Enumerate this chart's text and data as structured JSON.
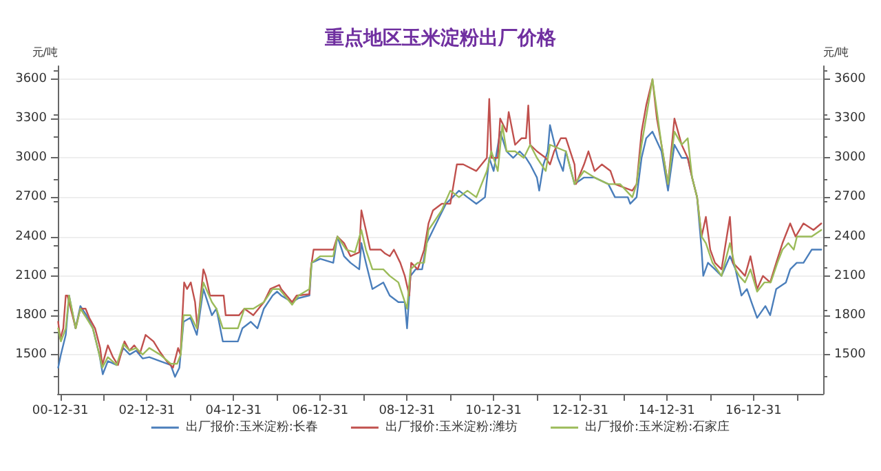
{
  "chart_data": {
    "type": "line",
    "title": "重点地区玉米淀粉出厂价格",
    "ylabel": "元/吨",
    "y2label": "元/吨",
    "xlim": [
      "2000-12-10",
      "2018-08-10"
    ],
    "xticks": [
      {
        "value": "2000-12-31",
        "label": "00-12-31"
      },
      {
        "value": "2001-12-31",
        "label": null
      },
      {
        "value": "2002-12-31",
        "label": "02-12-31"
      },
      {
        "value": "2003-12-31",
        "label": null
      },
      {
        "value": "2004-12-31",
        "label": "04-12-31"
      },
      {
        "value": "2005-12-31",
        "label": null
      },
      {
        "value": "2006-12-31",
        "label": "06-12-31"
      },
      {
        "value": "2007-12-31",
        "label": null
      },
      {
        "value": "2008-12-31",
        "label": "08-12-31"
      },
      {
        "value": "2009-12-31",
        "label": null
      },
      {
        "value": "2010-12-31",
        "label": "10-12-31"
      },
      {
        "value": "2011-12-31",
        "label": null
      },
      {
        "value": "2012-12-31",
        "label": "12-12-31"
      },
      {
        "value": "2013-12-31",
        "label": null
      },
      {
        "value": "2014-12-31",
        "label": "14-12-31"
      },
      {
        "value": "2015-12-31",
        "label": null
      },
      {
        "value": "2016-12-31",
        "label": "16-12-31"
      },
      {
        "value": "2017-12-31",
        "label": null
      }
    ],
    "ylim": [
      1200,
      3700
    ],
    "yticks": [
      1500,
      1800,
      2100,
      2400,
      2700,
      3000,
      3300,
      3600
    ],
    "y2lim": [
      1200,
      3700
    ],
    "y2ticks": [
      1500,
      1800,
      2100,
      2400,
      2700,
      3000,
      3300,
      3600
    ],
    "grid": "y",
    "legend": "bottom",
    "marker": "none",
    "line_style": "solid",
    "series": [
      {
        "name": "出厂报价:玉米淀粉:长春",
        "color": "#4a7ebb",
        "x": [
          "2000-12-13",
          "2001-01-05",
          "2001-02-15",
          "2001-03-15",
          "2001-05-08",
          "2001-06-18",
          "2001-08-08",
          "2001-10-01",
          "2001-11-25",
          "2001-12-24",
          "2002-02-05",
          "2002-04-20",
          "2002-06-15",
          "2002-08-08",
          "2002-10-01",
          "2002-11-25",
          "2003-01-20",
          "2003-04-20",
          "2003-07-20",
          "2003-08-25",
          "2003-10-01",
          "2003-11-05",
          "2004-01-01",
          "2004-02-25",
          "2004-04-20",
          "2004-07-01",
          "2004-08-08",
          "2004-10-01",
          "2005-02-05",
          "2005-03-15",
          "2005-05-25",
          "2005-07-20",
          "2005-09-12",
          "2005-11-25",
          "2006-01-01",
          "2006-02-05",
          "2006-05-08",
          "2006-07-01",
          "2006-10-01",
          "2006-10-20",
          "2007-01-01",
          "2007-04-20",
          "2007-05-25",
          "2007-07-20",
          "2007-09-12",
          "2007-11-25",
          "2007-12-13",
          "2008-01-20",
          "2008-03-15",
          "2008-06-15",
          "2008-08-08",
          "2008-10-20",
          "2008-12-13",
          "2009-01-01",
          "2009-01-30",
          "2009-03-15",
          "2009-05-08",
          "2009-06-15",
          "2009-08-08",
          "2009-10-01",
          "2009-11-25",
          "2010-01-20",
          "2010-03-15",
          "2010-05-25",
          "2010-08-08",
          "2010-10-20",
          "2010-11-25",
          "2011-01-01",
          "2011-02-25",
          "2011-04-20",
          "2011-06-15",
          "2011-08-08",
          "2011-10-01",
          "2011-11-05",
          "2012-01-01",
          "2012-01-20",
          "2012-02-25",
          "2012-04-01",
          "2012-04-20",
          "2012-06-25",
          "2012-08-08",
          "2012-09-01",
          "2012-11-13",
          "2013-02-01",
          "2013-05-01",
          "2013-08-25",
          "2013-10-20",
          "2014-02-05",
          "2014-02-25",
          "2014-04-20",
          "2014-06-01",
          "2014-07-10",
          "2014-09-01",
          "2014-11-16",
          "2015-01-10",
          "2015-03-05",
          "2015-05-05",
          "2015-06-25",
          "2015-08-01",
          "2015-09-12",
          "2015-10-20",
          "2015-11-03",
          "2015-12-13",
          "2016-02-10",
          "2016-04-05",
          "2016-06-15",
          "2016-08-01",
          "2016-09-20",
          "2016-11-05",
          "2016-12-13",
          "2017-01-30",
          "2017-04-10",
          "2017-05-20",
          "2017-07-10",
          "2017-09-30",
          "2017-11-05",
          "2017-12-30",
          "2018-02-25",
          "2018-05-05",
          "2018-07-25"
        ],
        "values": [
          1400,
          1500,
          1650,
          1950,
          1700,
          1870,
          1800,
          1700,
          1500,
          1350,
          1450,
          1420,
          1550,
          1500,
          1530,
          1470,
          1480,
          1450,
          1420,
          1330,
          1400,
          1750,
          1780,
          1650,
          2000,
          1800,
          1850,
          1600,
          1600,
          1700,
          1750,
          1700,
          1850,
          1950,
          1980,
          1950,
          1900,
          1930,
          1950,
          2200,
          2230,
          2200,
          2400,
          2250,
          2200,
          2150,
          2350,
          2200,
          2000,
          2050,
          1950,
          1900,
          1900,
          1700,
          2100,
          2150,
          2150,
          2350,
          2450,
          2550,
          2650,
          2700,
          2750,
          2700,
          2650,
          2700,
          3000,
          2900,
          3200,
          3050,
          3000,
          3050,
          3000,
          2950,
          2850,
          2750,
          2950,
          3050,
          3250,
          3000,
          2900,
          3050,
          2800,
          2850,
          2850,
          2800,
          2700,
          2700,
          2650,
          2700,
          3000,
          3150,
          3200,
          3050,
          2750,
          3100,
          3000,
          3000,
          2850,
          2700,
          2300,
          2100,
          2200,
          2150,
          2100,
          2250,
          2150,
          1950,
          2000,
          1900,
          1780,
          1870,
          1800,
          2000,
          2050,
          2150,
          2200,
          2200,
          2300,
          2300
        ]
      },
      {
        "name": "出厂报价:玉米淀粉:潍坊",
        "color": "#c0504d",
        "x": [
          "2000-12-13",
          "2000-12-31",
          "2001-01-25",
          "2001-02-15",
          "2001-03-01",
          "2001-05-10",
          "2001-06-18",
          "2001-08-01",
          "2001-09-01",
          "2001-10-20",
          "2001-12-02",
          "2001-12-20",
          "2002-02-05",
          "2002-03-20",
          "2002-05-01",
          "2002-06-25",
          "2002-08-05",
          "2002-09-15",
          "2002-11-03",
          "2002-12-20",
          "2003-02-25",
          "2003-04-20",
          "2003-06-15",
          "2003-08-08",
          "2003-09-20",
          "2003-10-10",
          "2003-11-10",
          "2003-12-05",
          "2004-01-05",
          "2004-02-10",
          "2004-03-01",
          "2004-04-20",
          "2004-05-10",
          "2004-06-15",
          "2004-10-08",
          "2004-10-25",
          "2005-02-15",
          "2005-04-01",
          "2005-06-15",
          "2005-09-12",
          "2005-11-05",
          "2006-01-20",
          "2006-02-05",
          "2006-05-08",
          "2006-06-15",
          "2006-10-01",
          "2006-10-12",
          "2006-11-05",
          "2007-04-20",
          "2007-05-25",
          "2007-07-20",
          "2007-09-12",
          "2007-11-25",
          "2007-12-13",
          "2008-01-20",
          "2008-02-25",
          "2008-05-25",
          "2008-07-01",
          "2008-08-08",
          "2008-09-12",
          "2008-11-05",
          "2008-12-13",
          "2009-01-20",
          "2009-02-05",
          "2009-04-01",
          "2009-05-25",
          "2009-07-01",
          "2009-08-08",
          "2009-10-20",
          "2010-01-01",
          "2010-02-25",
          "2010-04-20",
          "2010-08-08",
          "2010-11-05",
          "2010-11-25",
          "2010-12-13",
          "2011-02-05",
          "2011-02-25",
          "2011-04-20",
          "2011-05-08",
          "2011-07-01",
          "2011-08-25",
          "2011-10-01",
          "2011-10-20",
          "2011-11-05",
          "2012-01-01",
          "2012-03-15",
          "2012-04-20",
          "2012-05-25",
          "2012-07-20",
          "2012-09-01",
          "2012-11-13",
          "2012-11-25",
          "2013-02-01",
          "2013-03-10",
          "2013-05-01",
          "2013-07-01",
          "2013-09-12",
          "2013-10-20",
          "2014-03-15",
          "2014-04-20",
          "2014-06-01",
          "2014-07-10",
          "2014-09-01",
          "2014-10-08",
          "2014-11-16",
          "2015-01-10",
          "2015-03-05",
          "2015-05-05",
          "2015-06-25",
          "2015-08-01",
          "2015-09-12",
          "2015-10-20",
          "2015-11-25",
          "2016-01-01",
          "2016-02-10",
          "2016-04-05",
          "2016-06-15",
          "2016-07-10",
          "2016-09-01",
          "2016-10-20",
          "2016-12-05",
          "2017-01-30",
          "2017-03-20",
          "2017-05-20",
          "2017-07-10",
          "2017-09-01",
          "2017-11-05",
          "2017-12-20",
          "2018-02-25",
          "2018-05-20",
          "2018-07-25"
        ],
        "values": [
          1750,
          1620,
          1700,
          1950,
          1950,
          1700,
          1850,
          1850,
          1780,
          1700,
          1550,
          1420,
          1570,
          1480,
          1420,
          1600,
          1530,
          1570,
          1510,
          1650,
          1600,
          1520,
          1450,
          1400,
          1550,
          1500,
          2050,
          2000,
          2050,
          1900,
          1700,
          2150,
          2100,
          1950,
          1950,
          1800,
          1800,
          1850,
          1800,
          1900,
          2000,
          2030,
          2000,
          1900,
          1950,
          1960,
          2150,
          2300,
          2300,
          2400,
          2350,
          2250,
          2280,
          2600,
          2450,
          2300,
          2300,
          2270,
          2250,
          2300,
          2200,
          2100,
          1950,
          2200,
          2150,
          2300,
          2500,
          2600,
          2650,
          2650,
          2950,
          2950,
          2900,
          3000,
          3450,
          3000,
          3000,
          3300,
          3200,
          3350,
          3100,
          3150,
          3150,
          3400,
          3100,
          3050,
          3000,
          2950,
          3050,
          3150,
          3150,
          2950,
          2800,
          2950,
          3050,
          2900,
          2950,
          2900,
          2800,
          2750,
          2800,
          3200,
          3400,
          3600,
          3300,
          3100,
          2800,
          3300,
          3100,
          3000,
          2850,
          2700,
          2400,
          2550,
          2300,
          2200,
          2150,
          2550,
          2200,
          2150,
          2100,
          2250,
          2000,
          2100,
          2050,
          2200,
          2350,
          2500,
          2400,
          2500,
          2450,
          2500
        ]
      },
      {
        "name": "出厂报价:玉米淀粉:石家庄",
        "color": "#9bbb59",
        "x": [
          "2000-12-13",
          "2001-01-05",
          "2001-02-15",
          "2001-03-15",
          "2001-05-10",
          "2001-06-18",
          "2001-08-08",
          "2001-10-01",
          "2001-11-25",
          "2001-12-20",
          "2002-02-05",
          "2002-04-20",
          "2002-06-15",
          "2002-08-08",
          "2002-10-01",
          "2002-11-25",
          "2003-01-20",
          "2003-04-20",
          "2003-07-20",
          "2003-09-12",
          "2003-10-12",
          "2003-11-05",
          "2004-01-01",
          "2004-02-25",
          "2004-04-20",
          "2004-07-01",
          "2004-08-08",
          "2004-10-01",
          "2005-02-05",
          "2005-04-01",
          "2005-06-15",
          "2005-09-12",
          "2005-11-25",
          "2006-01-20",
          "2006-05-08",
          "2006-07-01",
          "2006-10-01",
          "2006-10-20",
          "2007-01-01",
          "2007-04-20",
          "2007-05-25",
          "2007-08-08",
          "2007-10-20",
          "2007-12-13",
          "2008-01-20",
          "2008-03-15",
          "2008-06-15",
          "2008-08-08",
          "2008-10-20",
          "2009-01-01",
          "2009-01-30",
          "2009-04-01",
          "2009-05-25",
          "2009-07-01",
          "2009-08-08",
          "2009-10-20",
          "2010-01-01",
          "2010-03-15",
          "2010-05-25",
          "2010-08-08",
          "2010-11-05",
          "2010-12-13",
          "2011-02-05",
          "2011-03-15",
          "2011-04-20",
          "2011-07-01",
          "2011-09-12",
          "2011-11-05",
          "2012-01-01",
          "2012-03-15",
          "2012-04-20",
          "2012-09-01",
          "2012-11-13",
          "2013-02-01",
          "2013-05-01",
          "2013-08-25",
          "2013-12-02",
          "2014-03-15",
          "2014-04-20",
          "2014-06-01",
          "2014-09-01",
          "2014-11-16",
          "2015-01-10",
          "2015-03-05",
          "2015-05-05",
          "2015-06-25",
          "2015-08-01",
          "2015-09-12",
          "2015-10-20",
          "2015-11-25",
          "2016-01-20",
          "2016-04-05",
          "2016-06-15",
          "2016-08-01",
          "2016-09-01",
          "2016-10-20",
          "2016-12-05",
          "2017-01-30",
          "2017-04-01",
          "2017-05-25",
          "2017-07-20",
          "2017-09-01",
          "2017-10-20",
          "2017-12-05",
          "2018-01-01",
          "2018-05-05",
          "2018-07-25"
        ],
        "values": [
          1700,
          1600,
          1700,
          1950,
          1700,
          1850,
          1780,
          1700,
          1500,
          1400,
          1480,
          1420,
          1580,
          1530,
          1550,
          1500,
          1550,
          1500,
          1430,
          1430,
          1500,
          1800,
          1800,
          1700,
          2050,
          1900,
          1850,
          1700,
          1700,
          1850,
          1850,
          1900,
          2000,
          2000,
          1880,
          1950,
          2000,
          2200,
          2250,
          2250,
          2400,
          2300,
          2280,
          2450,
          2300,
          2150,
          2150,
          2100,
          2050,
          1850,
          2150,
          2200,
          2200,
          2450,
          2500,
          2600,
          2750,
          2700,
          2750,
          2700,
          2900,
          3050,
          2900,
          3250,
          3050,
          3050,
          3000,
          3100,
          3000,
          2900,
          3100,
          3050,
          2800,
          2900,
          2850,
          2800,
          2800,
          2700,
          2800,
          3100,
          3600,
          3100,
          2800,
          3200,
          3100,
          3150,
          2850,
          2700,
          2400,
          2350,
          2200,
          2100,
          2350,
          2150,
          2100,
          2050,
          2150,
          1980,
          2050,
          2050,
          2200,
          2300,
          2350,
          2300,
          2400,
          2400,
          2450
        ]
      }
    ]
  }
}
